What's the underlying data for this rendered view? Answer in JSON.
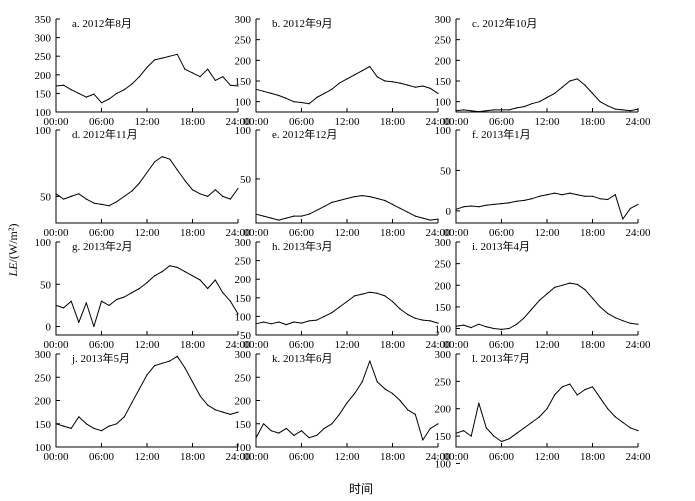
{
  "figure": {
    "ylabel_prefix": "LE",
    "ylabel_unit": "/(W/m²)",
    "xlabel": "时间"
  },
  "chart_data": [
    {
      "type": "line",
      "title": "a. 2012年8月",
      "x": [
        "00:00",
        "01:00",
        "02:00",
        "03:00",
        "04:00",
        "05:00",
        "06:00",
        "07:00",
        "08:00",
        "09:00",
        "10:00",
        "11:00",
        "12:00",
        "13:00",
        "14:00",
        "15:00",
        "16:00",
        "17:00",
        "18:00",
        "19:00",
        "20:00",
        "21:00",
        "22:00",
        "23:00",
        "24:00"
      ],
      "xticks": [
        "00:00",
        "06:00",
        "12:00",
        "18:00",
        "24:00"
      ],
      "yticks": [
        100,
        150,
        200,
        250,
        300,
        350
      ],
      "ylim": [
        100,
        350
      ],
      "values": [
        170,
        172,
        160,
        150,
        140,
        148,
        125,
        135,
        150,
        160,
        175,
        195,
        220,
        240,
        245,
        250,
        255,
        215,
        205,
        195,
        215,
        185,
        195,
        172,
        170
      ]
    },
    {
      "type": "line",
      "title": "b. 2012年9月",
      "x": [
        "00:00",
        "01:00",
        "02:00",
        "03:00",
        "04:00",
        "05:00",
        "06:00",
        "07:00",
        "08:00",
        "09:00",
        "10:00",
        "11:00",
        "12:00",
        "13:00",
        "14:00",
        "15:00",
        "16:00",
        "17:00",
        "18:00",
        "19:00",
        "20:00",
        "21:00",
        "22:00",
        "23:00",
        "24:00"
      ],
      "xticks": [
        "00:00",
        "06:00",
        "12:00",
        "18:00",
        "24:00"
      ],
      "yticks": [
        100,
        150,
        200,
        250,
        300
      ],
      "ylim": [
        75,
        300
      ],
      "values": [
        130,
        125,
        120,
        115,
        108,
        100,
        98,
        95,
        110,
        120,
        130,
        145,
        155,
        165,
        175,
        185,
        160,
        150,
        148,
        145,
        140,
        135,
        138,
        132,
        120
      ]
    },
    {
      "type": "line",
      "title": "c. 2012年10月",
      "x": [
        "00:00",
        "01:00",
        "02:00",
        "03:00",
        "04:00",
        "05:00",
        "06:00",
        "07:00",
        "08:00",
        "09:00",
        "10:00",
        "11:00",
        "12:00",
        "13:00",
        "14:00",
        "15:00",
        "16:00",
        "17:00",
        "18:00",
        "19:00",
        "20:00",
        "21:00",
        "22:00",
        "23:00",
        "24:00"
      ],
      "xticks": [
        "00:00",
        "06:00",
        "12:00",
        "18:00",
        "24:00"
      ],
      "yticks": [
        100,
        150,
        200,
        250,
        300
      ],
      "ylim": [
        75,
        300
      ],
      "values": [
        78,
        80,
        78,
        76,
        78,
        80,
        80,
        80,
        85,
        88,
        95,
        100,
        110,
        120,
        135,
        150,
        155,
        140,
        120,
        100,
        90,
        82,
        80,
        78,
        82
      ]
    },
    {
      "type": "line",
      "title": "d. 2012年11月",
      "x": [
        "00:00",
        "01:00",
        "02:00",
        "03:00",
        "04:00",
        "05:00",
        "06:00",
        "07:00",
        "08:00",
        "09:00",
        "10:00",
        "11:00",
        "12:00",
        "13:00",
        "14:00",
        "15:00",
        "16:00",
        "17:00",
        "18:00",
        "19:00",
        "20:00",
        "21:00",
        "22:00",
        "23:00",
        "24:00"
      ],
      "xticks": [
        "00:00",
        "06:00",
        "12:00",
        "18:00",
        "24:00"
      ],
      "yticks": [
        50,
        100
      ],
      "ylim": [
        30,
        100
      ],
      "values": [
        52,
        48,
        50,
        52,
        48,
        45,
        44,
        43,
        46,
        50,
        54,
        60,
        68,
        76,
        80,
        78,
        70,
        62,
        55,
        52,
        50,
        55,
        50,
        48,
        56
      ]
    },
    {
      "type": "line",
      "title": "e. 2012年12月",
      "x": [
        "00:00",
        "01:00",
        "02:00",
        "03:00",
        "04:00",
        "05:00",
        "06:00",
        "07:00",
        "08:00",
        "09:00",
        "10:00",
        "11:00",
        "12:00",
        "13:00",
        "14:00",
        "15:00",
        "16:00",
        "17:00",
        "18:00",
        "19:00",
        "20:00",
        "21:00",
        "22:00",
        "23:00",
        "24:00"
      ],
      "xticks": [
        "00:00",
        "06:00",
        "12:00",
        "18:00",
        "24:00"
      ],
      "yticks": [
        50,
        100
      ],
      "ylim": [
        5,
        100
      ],
      "values": [
        14,
        12,
        10,
        8,
        10,
        12,
        12,
        14,
        18,
        22,
        26,
        28,
        30,
        32,
        33,
        32,
        30,
        28,
        24,
        20,
        16,
        12,
        10,
        8,
        9
      ]
    },
    {
      "type": "line",
      "title": "f. 2013年1月",
      "x": [
        "00:00",
        "01:00",
        "02:00",
        "03:00",
        "04:00",
        "05:00",
        "06:00",
        "07:00",
        "08:00",
        "09:00",
        "10:00",
        "11:00",
        "12:00",
        "13:00",
        "14:00",
        "15:00",
        "16:00",
        "17:00",
        "18:00",
        "19:00",
        "20:00",
        "21:00",
        "22:00",
        "23:00",
        "24:00"
      ],
      "xticks": [
        "00:00",
        "06:00",
        "12:00",
        "18:00",
        "24:00"
      ],
      "yticks": [
        0,
        50,
        100
      ],
      "ylim": [
        -15,
        100
      ],
      "values": [
        2,
        5,
        6,
        5,
        7,
        8,
        9,
        10,
        12,
        13,
        15,
        18,
        20,
        22,
        20,
        22,
        20,
        18,
        18,
        15,
        14,
        20,
        -10,
        3,
        8
      ]
    },
    {
      "type": "line",
      "title": "g. 2013年2月",
      "x": [
        "00:00",
        "01:00",
        "02:00",
        "03:00",
        "04:00",
        "05:00",
        "06:00",
        "07:00",
        "08:00",
        "09:00",
        "10:00",
        "11:00",
        "12:00",
        "13:00",
        "14:00",
        "15:00",
        "16:00",
        "17:00",
        "18:00",
        "19:00",
        "20:00",
        "21:00",
        "22:00",
        "23:00",
        "24:00"
      ],
      "xticks": [
        "00:00",
        "06:00",
        "12:00",
        "18:00",
        "24:00"
      ],
      "yticks": [
        0,
        50,
        100
      ],
      "ylim": [
        -10,
        100
      ],
      "values": [
        25,
        22,
        30,
        5,
        28,
        0,
        30,
        25,
        32,
        35,
        40,
        45,
        52,
        60,
        65,
        72,
        70,
        65,
        60,
        55,
        45,
        55,
        40,
        30,
        15
      ]
    },
    {
      "type": "line",
      "title": "h. 2013年3月",
      "x": [
        "00:00",
        "01:00",
        "02:00",
        "03:00",
        "04:00",
        "05:00",
        "06:00",
        "07:00",
        "08:00",
        "09:00",
        "10:00",
        "11:00",
        "12:00",
        "13:00",
        "14:00",
        "15:00",
        "16:00",
        "17:00",
        "18:00",
        "19:00",
        "20:00",
        "21:00",
        "22:00",
        "23:00",
        "24:00"
      ],
      "xticks": [
        "00:00",
        "06:00",
        "12:00",
        "18:00",
        "24:00"
      ],
      "yticks": [
        50,
        100,
        150,
        200,
        250,
        300
      ],
      "ylim": [
        50,
        300
      ],
      "values": [
        80,
        85,
        80,
        85,
        78,
        85,
        82,
        88,
        90,
        100,
        110,
        125,
        140,
        155,
        160,
        165,
        162,
        155,
        140,
        120,
        105,
        95,
        90,
        88,
        82
      ]
    },
    {
      "type": "line",
      "title": "i. 2013年4月",
      "x": [
        "00:00",
        "01:00",
        "02:00",
        "03:00",
        "04:00",
        "05:00",
        "06:00",
        "07:00",
        "08:00",
        "09:00",
        "10:00",
        "11:00",
        "12:00",
        "13:00",
        "14:00",
        "15:00",
        "16:00",
        "17:00",
        "18:00",
        "19:00",
        "20:00",
        "21:00",
        "22:00",
        "23:00",
        "24:00"
      ],
      "xticks": [
        "00:00",
        "06:00",
        "12:00",
        "18:00",
        "24:00"
      ],
      "yticks": [
        100,
        150,
        200,
        250,
        300
      ],
      "ylim": [
        85,
        300
      ],
      "values": [
        105,
        108,
        102,
        110,
        104,
        100,
        98,
        100,
        110,
        125,
        145,
        165,
        180,
        195,
        200,
        205,
        202,
        190,
        170,
        150,
        135,
        125,
        118,
        112,
        110
      ]
    },
    {
      "type": "line",
      "title": "j. 2013年5月",
      "x": [
        "00:00",
        "01:00",
        "02:00",
        "03:00",
        "04:00",
        "05:00",
        "06:00",
        "07:00",
        "08:00",
        "09:00",
        "10:00",
        "11:00",
        "12:00",
        "13:00",
        "14:00",
        "15:00",
        "16:00",
        "17:00",
        "18:00",
        "19:00",
        "20:00",
        "21:00",
        "22:00",
        "23:00",
        "24:00"
      ],
      "xticks": [
        "00:00",
        "06:00",
        "12:00",
        "18:00",
        "24:00"
      ],
      "yticks": [
        100,
        150,
        200,
        250,
        300
      ],
      "ylim": [
        100,
        300
      ],
      "values": [
        150,
        145,
        140,
        165,
        150,
        140,
        135,
        145,
        150,
        165,
        195,
        225,
        255,
        275,
        280,
        285,
        295,
        270,
        240,
        210,
        190,
        180,
        175,
        170,
        175
      ]
    },
    {
      "type": "line",
      "title": "k. 2013年6月",
      "x": [
        "00:00",
        "01:00",
        "02:00",
        "03:00",
        "04:00",
        "05:00",
        "06:00",
        "07:00",
        "08:00",
        "09:00",
        "10:00",
        "11:00",
        "12:00",
        "13:00",
        "14:00",
        "15:00",
        "16:00",
        "17:00",
        "18:00",
        "19:00",
        "20:00",
        "21:00",
        "22:00",
        "23:00",
        "24:00"
      ],
      "xticks": [
        "00:00",
        "06:00",
        "12:00",
        "18:00",
        "24:00"
      ],
      "yticks": [
        100,
        150,
        200,
        250,
        300
      ],
      "ylim": [
        100,
        300
      ],
      "values": [
        120,
        150,
        135,
        130,
        140,
        125,
        135,
        120,
        125,
        140,
        150,
        170,
        195,
        215,
        240,
        285,
        240,
        225,
        215,
        200,
        180,
        170,
        115,
        140,
        150
      ]
    },
    {
      "type": "line",
      "title": "l. 2013年7月",
      "x": [
        "00:00",
        "01:00",
        "02:00",
        "03:00",
        "04:00",
        "05:00",
        "06:00",
        "07:00",
        "08:00",
        "09:00",
        "10:00",
        "11:00",
        "12:00",
        "13:00",
        "14:00",
        "15:00",
        "16:00",
        "17:00",
        "18:00",
        "19:00",
        "20:00",
        "21:00",
        "22:00",
        "23:00",
        "24:00"
      ],
      "xticks": [
        "00:00",
        "06:00",
        "12:00",
        "18:00",
        "24:00"
      ],
      "yticks": [
        100,
        150,
        200,
        250,
        300
      ],
      "ylim": [
        130,
        300
      ],
      "values": [
        155,
        160,
        150,
        210,
        165,
        150,
        140,
        145,
        155,
        165,
        175,
        185,
        200,
        225,
        240,
        245,
        225,
        235,
        240,
        220,
        200,
        185,
        175,
        165,
        160
      ]
    }
  ]
}
